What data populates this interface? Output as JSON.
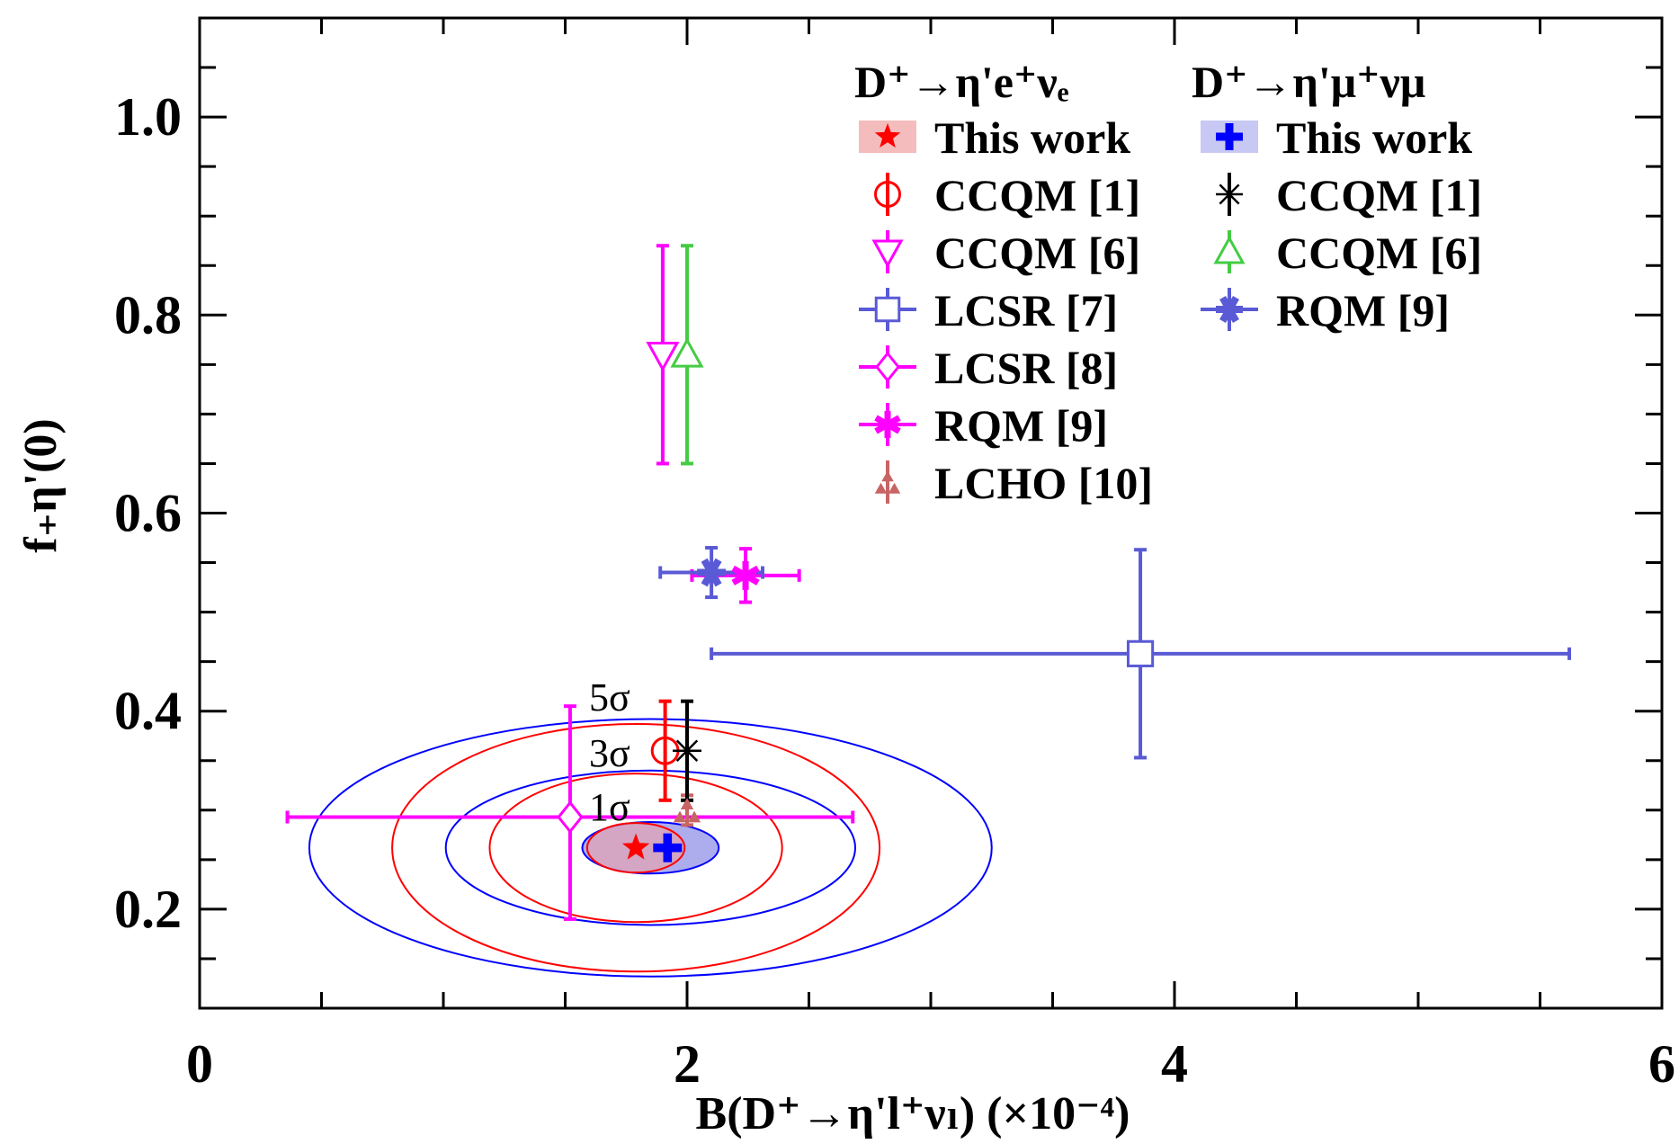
{
  "chart_data": {
    "type": "scatter",
    "xlabel": "B(D⁺→η'l⁺νₗ) (×10⁻⁴)",
    "ylabel": "f₊η'(0)",
    "xlim": [
      0,
      6
    ],
    "ylim": [
      0.1,
      1.1
    ],
    "x_ticks": [
      "0",
      "2",
      "4",
      "6"
    ],
    "y_ticks": [
      "0.2",
      "0.4",
      "0.6",
      "0.8",
      "1.0"
    ],
    "grid": false,
    "legend_position": "top-right",
    "legend": {
      "electron_header": "D⁺→η'e⁺νₑ",
      "muon_header": "D⁺→η'μ⁺νμ",
      "electron_entries": [
        "This work",
        "CCQM [1]",
        "CCQM [6]",
        "LCSR [7]",
        "LCSR [8]",
        "RQM [9]",
        "LCHO [10]"
      ],
      "muon_entries": [
        "This work",
        "CCQM [1]",
        "CCQM [6]",
        "RQM [9]"
      ]
    },
    "contour_labels": [
      "5σ",
      "3σ",
      "1σ"
    ],
    "series": [
      {
        "name": "D⁺→η'e⁺νₑ This work",
        "marker": "star",
        "color": "#ff0000",
        "x": 1.79,
        "y": 0.262
      },
      {
        "name": "D⁺→η'e⁺νₑ CCQM [1]",
        "marker": "circle",
        "color": "#ff0000",
        "x": 1.91,
        "y": 0.36,
        "y_low": 0.31,
        "y_high": 0.41
      },
      {
        "name": "D⁺→η'e⁺νₑ CCQM [6]",
        "marker": "triangle-down",
        "color": "#ff00ff",
        "x": 1.9,
        "y": 0.76,
        "y_low": 0.65,
        "y_high": 0.87
      },
      {
        "name": "D⁺→η'e⁺νₑ LCSR [7]",
        "marker": "square",
        "color": "#5a5ad6",
        "x": 3.86,
        "y": 0.458,
        "x_low": 2.1,
        "x_high": 5.62,
        "y_low": 0.353,
        "y_high": 0.563
      },
      {
        "name": "D⁺→η'e⁺νₑ LCSR [8]",
        "marker": "diamond",
        "color": "#ff00ff",
        "x": 1.52,
        "y": 0.293,
        "x_low": 0.36,
        "x_high": 2.68,
        "y_low": 0.19,
        "y_high": 0.405
      },
      {
        "name": "D⁺→η'e⁺νₑ RQM [9]",
        "marker": "star6",
        "color": "#ff00ff",
        "x": 2.24,
        "y": 0.537,
        "x_low": 2.02,
        "x_high": 2.46,
        "y_low": 0.51,
        "y_high": 0.564
      },
      {
        "name": "D⁺→η'e⁺νₑ LCHO [10]",
        "marker": "triangles",
        "color": "#c86464",
        "x": 2.0,
        "y": 0.3,
        "y_low": 0.285,
        "y_high": 0.315
      },
      {
        "name": "D⁺→η'μ⁺νμ This work",
        "marker": "cross",
        "color": "#0000ff",
        "x": 1.92,
        "y": 0.262
      },
      {
        "name": "D⁺→η'μ⁺νμ CCQM [1]",
        "marker": "asterisk",
        "color": "#000000",
        "x": 2.0,
        "y": 0.36,
        "y_low": 0.31,
        "y_high": 0.41
      },
      {
        "name": "D⁺→η'μ⁺νμ CCQM [6]",
        "marker": "triangle-up",
        "color": "#44cc44",
        "x": 2.0,
        "y": 0.76,
        "y_low": 0.65,
        "y_high": 0.87
      },
      {
        "name": "D⁺→η'μ⁺νμ RQM [9]",
        "marker": "xcross",
        "color": "#5a5ad6",
        "x": 2.1,
        "y": 0.54,
        "x_low": 1.89,
        "x_high": 2.31,
        "y_low": 0.515,
        "y_high": 0.565
      }
    ],
    "contours": [
      {
        "name": "electron 1σ",
        "color": "#ff0000",
        "fill": "#f4a0a0",
        "cx": 1.79,
        "cy": 0.262,
        "rx": 0.2,
        "ry": 0.025
      },
      {
        "name": "electron 3σ",
        "color": "#ff0000",
        "cx": 1.79,
        "cy": 0.262,
        "rx": 0.6,
        "ry": 0.075
      },
      {
        "name": "electron 5σ",
        "color": "#ff0000",
        "cx": 1.79,
        "cy": 0.262,
        "rx": 1.0,
        "ry": 0.125
      },
      {
        "name": "muon 1σ",
        "color": "#0000ff",
        "fill": "#6a6ae0",
        "cx": 1.85,
        "cy": 0.262,
        "rx": 0.28,
        "ry": 0.026
      },
      {
        "name": "muon 3σ",
        "color": "#0000ff",
        "cx": 1.85,
        "cy": 0.262,
        "rx": 0.84,
        "ry": 0.078
      },
      {
        "name": "muon 5σ",
        "color": "#0000ff",
        "cx": 1.85,
        "cy": 0.262,
        "rx": 1.4,
        "ry": 0.13
      }
    ]
  }
}
